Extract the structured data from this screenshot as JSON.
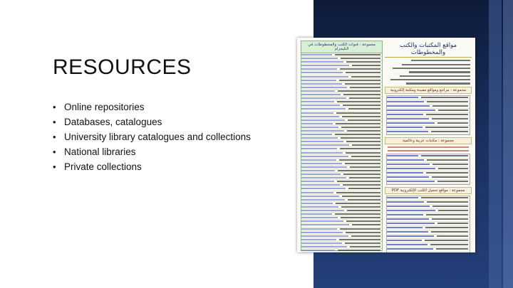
{
  "slide": {
    "title": "RESOURCES",
    "bullets": [
      "Online repositories",
      "Databases, catalogues",
      "University library catalogues and collections",
      "National libraries",
      "Private collections"
    ]
  },
  "colors": {
    "panel": "#1a2f5c",
    "title_text": "#111111"
  },
  "document_image": {
    "left_header": "مجموعة : قنوات الكتب والمخطوطات في التليجرام",
    "right_title": "مواقع المكتبات والكتب والمخطوطات",
    "section_1": "مجموعة : مراجع ومواقع مفيدة ومكتبة إلكترونية",
    "section_2": "مجموعة : مكتبات عربية وعالمية",
    "section_3": "مجموعة : مواقع تحميل الكتب الإلكترونية PDF"
  }
}
